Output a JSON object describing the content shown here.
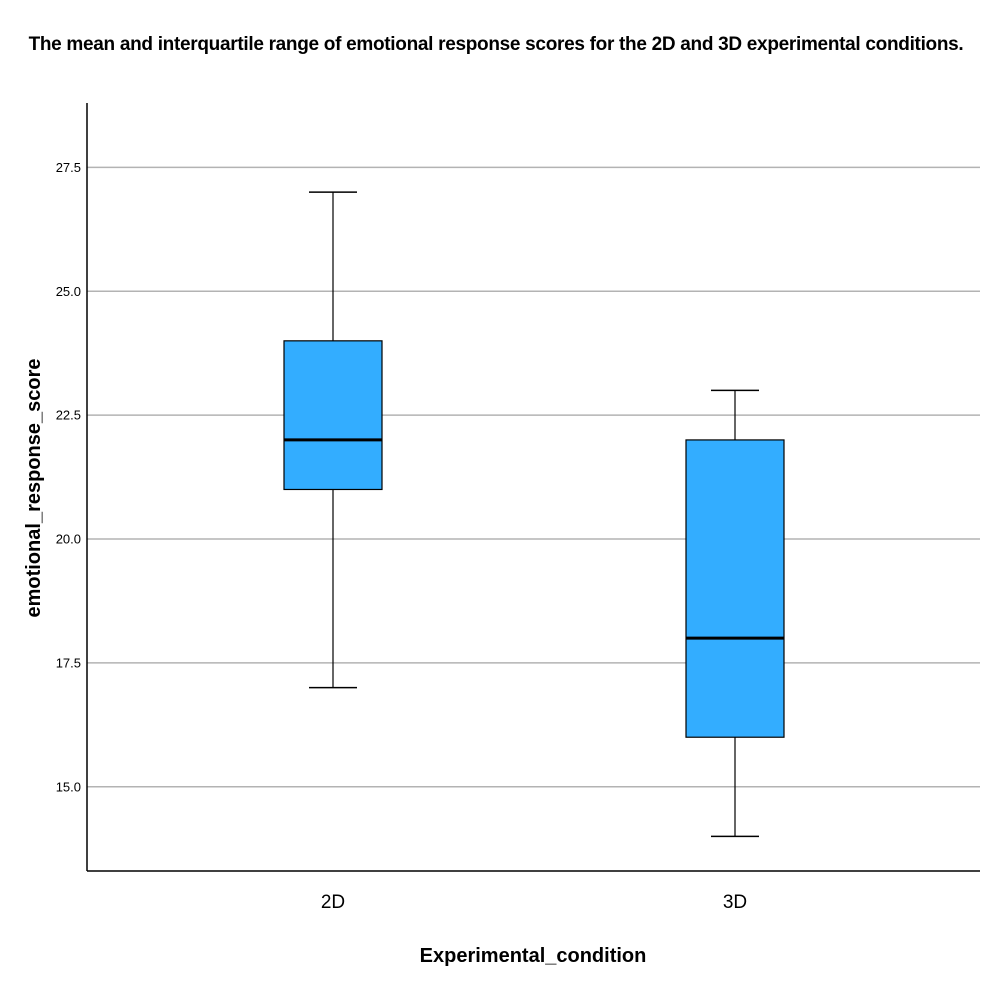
{
  "chart_data": {
    "type": "box",
    "title": "The mean and interquartile range of emotional response scores for the 2D and 3D experimental conditions.",
    "xlabel": "Experimental_condition",
    "ylabel": "emotional_response_score",
    "categories": [
      "2D",
      "3D"
    ],
    "boxes": [
      {
        "category": "2D",
        "min": 17.0,
        "q1": 21.0,
        "median": 22.0,
        "q3": 24.0,
        "max": 27.0
      },
      {
        "category": "3D",
        "min": 14.0,
        "q1": 16.0,
        "median": 18.0,
        "q3": 22.0,
        "max": 23.0
      }
    ],
    "yticks": [
      "15.0",
      "17.5",
      "20.0",
      "22.5",
      "25.0",
      "27.5"
    ],
    "ylim": [
      13.3,
      28.8
    ],
    "grid": true,
    "box_color": "#33adff",
    "grid_color": "#b3b3b3"
  }
}
